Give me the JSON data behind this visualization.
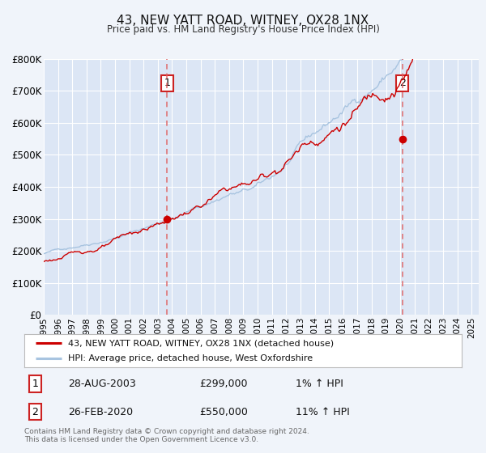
{
  "title": "43, NEW YATT ROAD, WITNEY, OX28 1NX",
  "subtitle": "Price paid vs. HM Land Registry's House Price Index (HPI)",
  "background_color": "#f0f4fa",
  "plot_bg_color": "#dce6f5",
  "grid_color": "#ffffff",
  "hpi_line_color": "#a8c4e0",
  "price_line_color": "#cc0000",
  "marker_color": "#cc0000",
  "vline_color": "#e06060",
  "yticks": [
    0,
    100000,
    200000,
    300000,
    400000,
    500000,
    600000,
    700000,
    800000
  ],
  "ytick_labels": [
    "£0",
    "£100K",
    "£200K",
    "£300K",
    "£400K",
    "£500K",
    "£600K",
    "£700K",
    "£800K"
  ],
  "xmin": 1995.0,
  "xmax": 2025.5,
  "ymin": 0,
  "ymax": 800000,
  "event1_x": 2003.65,
  "event1_y": 299000,
  "event1_label": "1",
  "event2_x": 2020.15,
  "event2_y": 550000,
  "event2_label": "2",
  "legend_line1": "43, NEW YATT ROAD, WITNEY, OX28 1NX (detached house)",
  "legend_line2": "HPI: Average price, detached house, West Oxfordshire",
  "table_row1_num": "1",
  "table_row1_date": "28-AUG-2003",
  "table_row1_price": "£299,000",
  "table_row1_hpi": "1% ↑ HPI",
  "table_row2_num": "2",
  "table_row2_date": "26-FEB-2020",
  "table_row2_price": "£550,000",
  "table_row2_hpi": "11% ↑ HPI",
  "footer": "Contains HM Land Registry data © Crown copyright and database right 2024.\nThis data is licensed under the Open Government Licence v3.0.",
  "xtick_years": [
    1995,
    1996,
    1997,
    1998,
    1999,
    2000,
    2001,
    2002,
    2003,
    2004,
    2005,
    2006,
    2007,
    2008,
    2009,
    2010,
    2011,
    2012,
    2013,
    2014,
    2015,
    2016,
    2017,
    2018,
    2019,
    2020,
    2021,
    2022,
    2023,
    2024,
    2025
  ],
  "n_points": 366
}
